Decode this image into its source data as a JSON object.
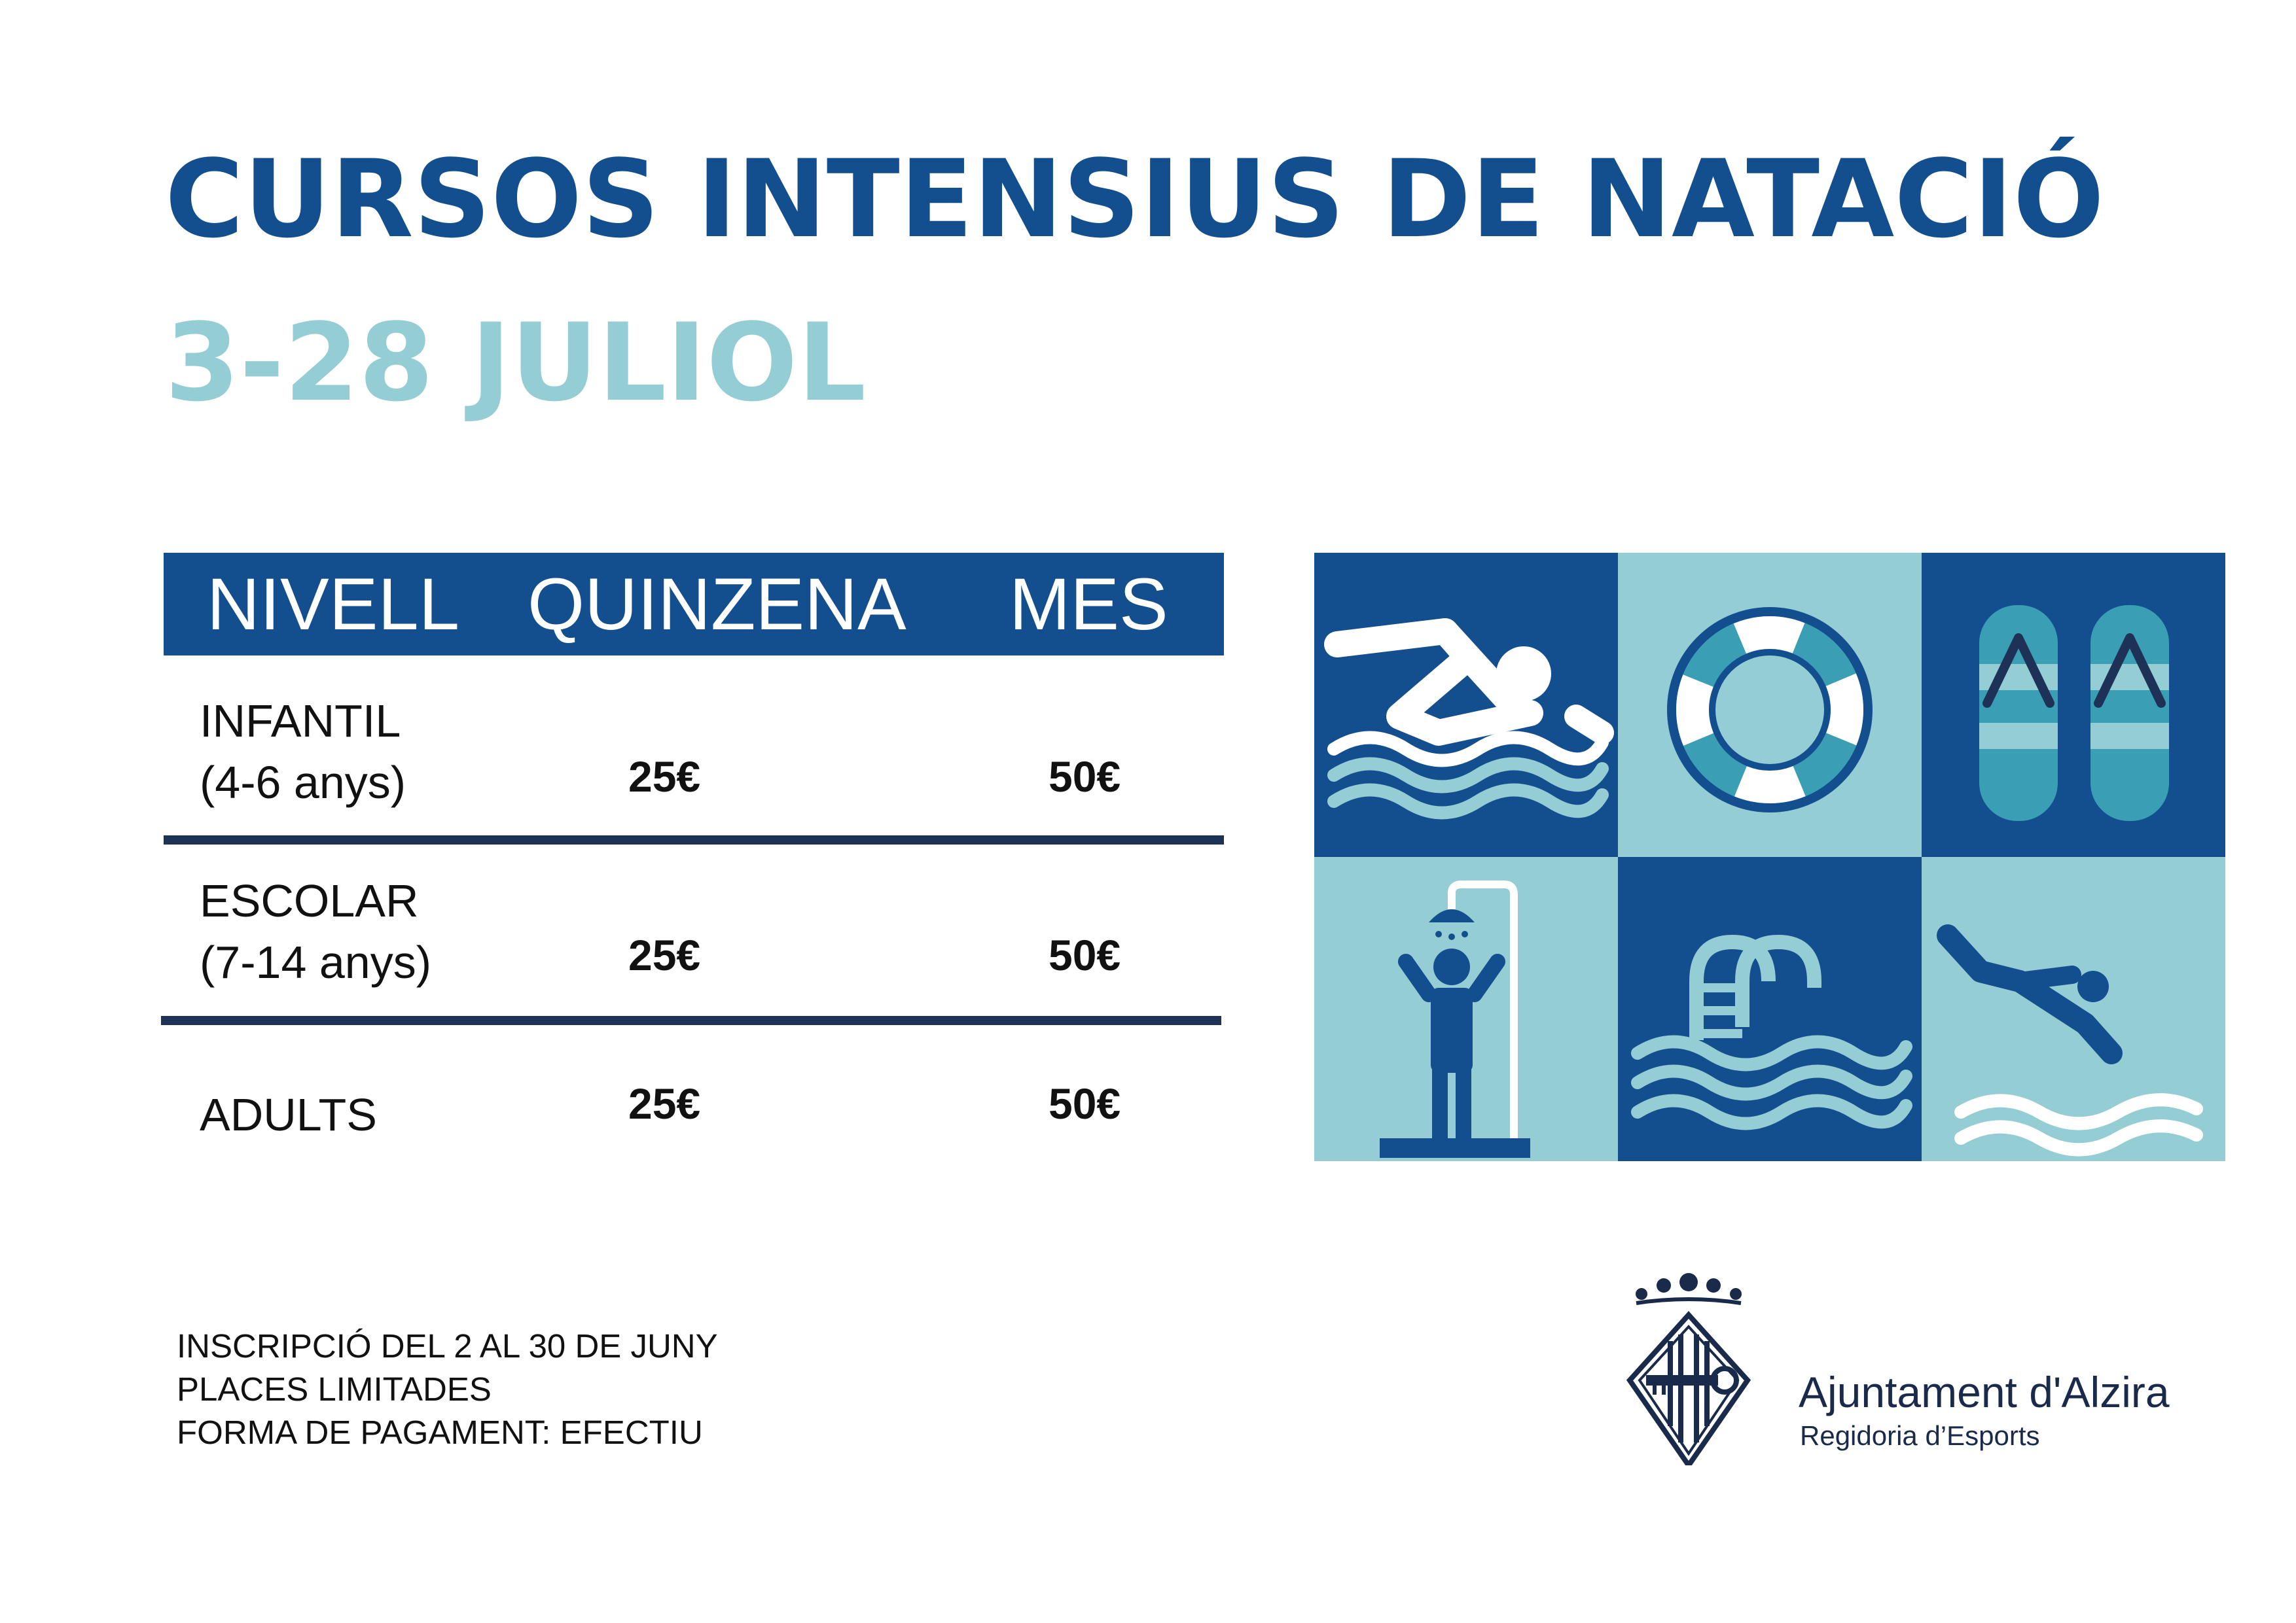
{
  "title": "CURSOS INTENSIUS DE NATACIÓ",
  "subtitle": "3-28 JULIOL",
  "table": {
    "headers": [
      "NIVELL",
      "QUINZENA",
      "MES"
    ],
    "rows": [
      {
        "level": "INFANTIL",
        "age": "(4-6 anys)",
        "quinzena": "25€",
        "mes": "50€"
      },
      {
        "level": "ESCOLAR",
        "age": "(7-14 anys)",
        "quinzena": "25€",
        "mes": "50€"
      },
      {
        "level": "ADULTS",
        "age": "",
        "quinzena": "25€",
        "mes": "50€"
      }
    ]
  },
  "icons": [
    "swimmer-icon",
    "lifebuoy-icon",
    "flip-flops-icon",
    "shower-icon",
    "pool-ladder-icon",
    "diver-icon"
  ],
  "notes": [
    "INSCRIPCIÓ DEL 2 AL 30 DE JUNY",
    "PLACES LIMITADES",
    "FORMA DE PAGAMENT: EFECTIU"
  ],
  "organization": {
    "name": "Ajuntament d'Alzira",
    "department": "Regidoria d’Esports"
  },
  "colors": {
    "dark_blue": "#134f8f",
    "light_teal": "#94cdd3",
    "mid_teal": "#3a9fb5",
    "separator": "#1e3258"
  }
}
